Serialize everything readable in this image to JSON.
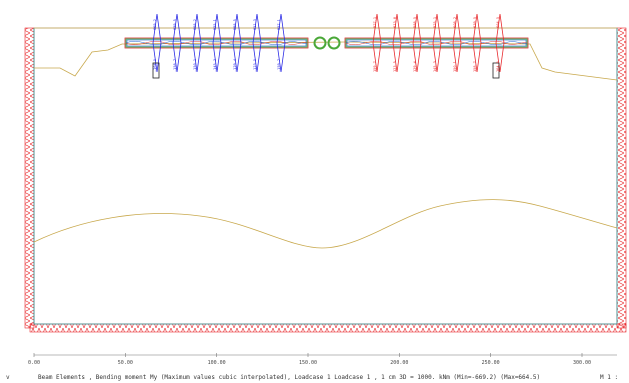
{
  "status_bar": {
    "corner_mark": "v",
    "description": "Beam Elements , Bending moment My (Maximum values cubic interpolated), Loadcase 1 Loadcase 1   , 1 cm 3D = 1000. kNm (Min=-669.2) (Max=664.5)",
    "scale_mark": "M 1 :"
  },
  "x_axis": {
    "ticks": [
      {
        "label": "0.00",
        "value": 0
      },
      {
        "label": "50.00",
        "value": 50
      },
      {
        "label": "100.00",
        "value": 100
      },
      {
        "label": "150.00",
        "value": 150
      },
      {
        "label": "200.00",
        "value": 200
      },
      {
        "label": "250.00",
        "value": 250
      },
      {
        "label": "300.00",
        "value": 300
      }
    ]
  },
  "colors": {
    "positive_moment": "#e8282c",
    "negative_moment": "#2a2ae6",
    "soil_line": "#c8a84c",
    "support": "#e8282c",
    "beam_blue": "#1e5fd0",
    "beam_green": "#2aa83a",
    "beam_red": "#d63030",
    "ring": "#4aa838"
  },
  "moment_labels": {
    "left_top": [
      "669.2",
      "639.5",
      "608.2",
      "525.1",
      "588.5",
      "611.3",
      "527.1"
    ],
    "left_bottom": [
      "-164.5",
      "-158.7",
      "-150.1",
      "-145.3",
      "-129.4",
      "-123.5",
      "-159.7"
    ],
    "right_top": [
      "-527.1",
      "-613.8",
      "-588.5",
      "-525.1",
      "-608.2",
      "-639.5",
      "-664.5"
    ],
    "right_bottom": [
      "159.7",
      "123.5",
      "129.4",
      "145.3",
      "150.1",
      "158.7",
      "164.5"
    ]
  }
}
